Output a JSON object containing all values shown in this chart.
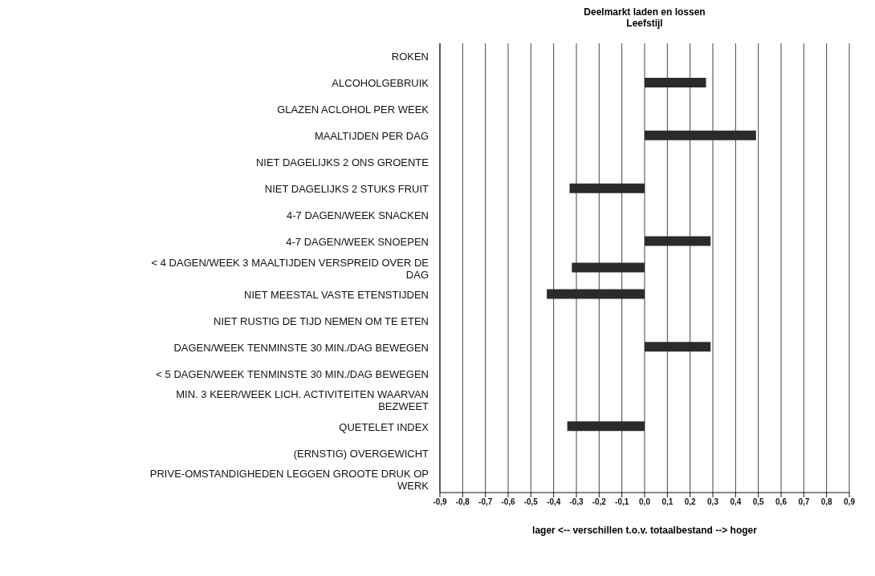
{
  "chart_data": {
    "type": "bar",
    "orientation": "horizontal",
    "title": "Deelmarkt laden en lossen",
    "subtitle": "Leefstijl",
    "xlabel": "lager <-- verschillen t.o.v. totaalbestand --> hoger",
    "categories": [
      "ROKEN",
      "ALCOHOLGEBRUIK",
      "GLAZEN ACLOHOL PER WEEK",
      "MAALTIJDEN PER DAG",
      "NIET DAGELIJKS 2 ONS GROENTE",
      "NIET DAGELIJKS 2 STUKS FRUIT",
      "4-7 DAGEN/WEEK SNACKEN",
      "4-7 DAGEN/WEEK SNOEPEN",
      "< 4 DAGEN/WEEK 3 MAALTIJDEN VERSPREID OVER DE DAG",
      "NIET MEESTAL VASTE ETENSTIJDEN",
      "NIET RUSTIG DE TIJD NEMEN OM TE ETEN",
      "DAGEN/WEEK TENMINSTE 30 MIN./DAG BEWEGEN",
      "< 5 DAGEN/WEEK TENMINSTE 30 MIN./DAG BEWEGEN",
      "MIN. 3 KEER/WEEK LICH. ACTIVITEITEN WAARVAN BEZWEET",
      "QUETELET INDEX",
      "(ERNSTIG) OVERGEWICHT",
      "PRIVE-OMSTANDIGHEDEN LEGGEN GROOTE DRUK OP WERK"
    ],
    "values": [
      null,
      0.27,
      null,
      0.49,
      null,
      -0.33,
      null,
      0.29,
      -0.32,
      -0.43,
      null,
      0.29,
      null,
      null,
      -0.34,
      null,
      null
    ],
    "color": "#2b2b2b",
    "xlim": [
      -0.9,
      0.9
    ],
    "xticks": [
      {
        "value": -0.9,
        "label": "-0,9"
      },
      {
        "value": -0.8,
        "label": "-0,8"
      },
      {
        "value": -0.7,
        "label": "-0,7"
      },
      {
        "value": -0.6,
        "label": "-0,6"
      },
      {
        "value": -0.5,
        "label": "-0,5"
      },
      {
        "value": -0.4,
        "label": "-0,4"
      },
      {
        "value": -0.3,
        "label": "-0,3"
      },
      {
        "value": -0.2,
        "label": "-0,2"
      },
      {
        "value": -0.1,
        "label": "-0,1"
      },
      {
        "value": 0,
        "label": "0,0"
      },
      {
        "value": 0.1,
        "label": "0,1"
      },
      {
        "value": 0.2,
        "label": "0,2"
      },
      {
        "value": 0.3,
        "label": "0,3"
      },
      {
        "value": 0.4,
        "label": "0,4"
      },
      {
        "value": 0.5,
        "label": "0,5"
      },
      {
        "value": 0.6,
        "label": "0,6"
      },
      {
        "value": 0.7,
        "label": "0,7"
      },
      {
        "value": 0.8,
        "label": "0,8"
      },
      {
        "value": 0.9,
        "label": "0,9"
      }
    ],
    "grid": "x",
    "legend": false
  }
}
